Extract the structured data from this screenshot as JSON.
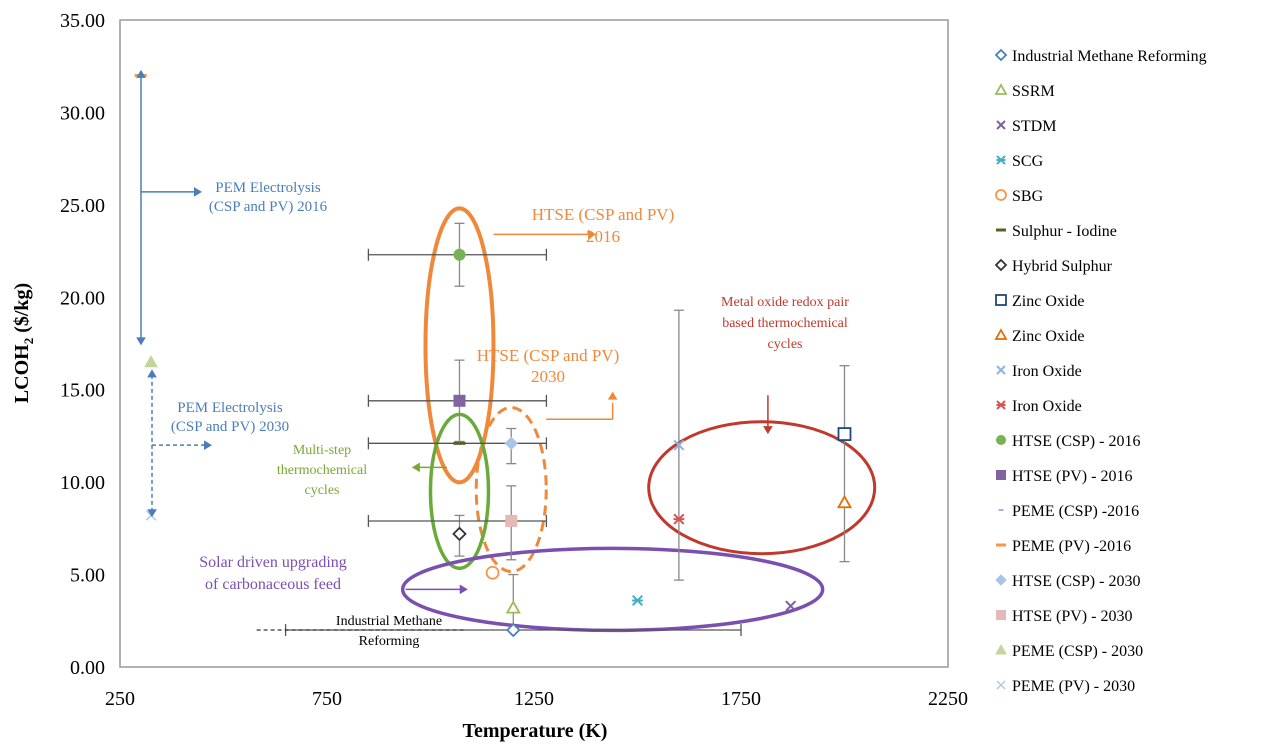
{
  "chart_data": {
    "type": "scatter",
    "xlabel": "Temperature (K)",
    "ylabel_main": "LCOH",
    "ylabel_sub": "2",
    "ylabel_tail": " ($/kg)",
    "xlim": [
      250,
      2250
    ],
    "ylim": [
      0,
      35
    ],
    "xticks": [
      250,
      750,
      1250,
      1750,
      2250
    ],
    "xtick_labels": [
      "250",
      "750",
      "1250",
      "1750",
      "2250"
    ],
    "yticks": [
      0,
      5,
      10,
      15,
      20,
      25,
      30,
      35
    ],
    "ytick_labels": [
      "0.00",
      "5.00",
      "10.00",
      "15.00",
      "20.00",
      "25.00",
      "30.00",
      "35.00"
    ],
    "legend_position": "right",
    "series": [
      {
        "name": "Industrial Methane Reforming",
        "marker": "diamond-open",
        "color": "#4a7ebb",
        "points": [
          {
            "x": 1200,
            "y": 2.0,
            "xerr": [
              650,
              1750
            ]
          }
        ]
      },
      {
        "name": "SSRM",
        "marker": "triangle-open",
        "color": "#9bbb59",
        "points": [
          {
            "x": 1200,
            "y": 3.2,
            "yerr": [
              2.0,
              5.0
            ]
          }
        ]
      },
      {
        "name": "STDM",
        "marker": "x",
        "color": "#7f5f9f",
        "points": [
          {
            "x": 1870,
            "y": 3.3
          }
        ]
      },
      {
        "name": "SCG",
        "marker": "asterisk",
        "color": "#4bacc6",
        "points": [
          {
            "x": 1500,
            "y": 3.6
          }
        ]
      },
      {
        "name": "SBG",
        "marker": "circle-open",
        "color": "#f79646",
        "points": [
          {
            "x": 1150,
            "y": 5.1
          }
        ]
      },
      {
        "name": "Sulphur - Iodine",
        "marker": "dash",
        "color": "#4f6228",
        "points": [
          {
            "x": 1070,
            "y": 12.1,
            "xerr": [
              850,
              1280
            ]
          }
        ]
      },
      {
        "name": "Hybrid Sulphur",
        "marker": "diamond-open",
        "color": "#333333",
        "points": [
          {
            "x": 1070,
            "y": 7.2,
            "yerr": [
              6.0,
              8.2
            ]
          }
        ]
      },
      {
        "name": "Zinc Oxide",
        "marker": "square-open",
        "color": "#1f497d",
        "points": [
          {
            "x": 2000,
            "y": 12.6
          }
        ]
      },
      {
        "name": "Zinc Oxide",
        "marker": "triangle-open",
        "color": "#e36c09",
        "points": [
          {
            "x": 2000,
            "y": 8.9,
            "yerr": [
              5.7,
              16.3
            ]
          }
        ]
      },
      {
        "name": "Iron Oxide",
        "marker": "x",
        "color": "#8eb4e3",
        "points": [
          {
            "x": 1600,
            "y": 12.0,
            "yerr": [
              4.7,
              19.3
            ]
          }
        ]
      },
      {
        "name": "Iron Oxide",
        "marker": "asterisk",
        "color": "#d9534f",
        "points": [
          {
            "x": 1600,
            "y": 8.0
          }
        ]
      },
      {
        "name": "HTSE (CSP) - 2016",
        "marker": "circle-filled",
        "color": "#77b255",
        "points": [
          {
            "x": 1070,
            "y": 22.3,
            "xerr": [
              850,
              1280
            ],
            "yerr": [
              20.6,
              24.0
            ]
          }
        ]
      },
      {
        "name": "HTSE (PV) - 2016",
        "marker": "square-filled",
        "color": "#8064a2",
        "points": [
          {
            "x": 1070,
            "y": 14.4,
            "xerr": [
              850,
              1280
            ],
            "yerr": [
              12.2,
              16.6
            ]
          }
        ]
      },
      {
        "name": "PEME (CSP) -2016",
        "marker": "dash-small",
        "color": "#a0b8d8",
        "points": [
          {
            "x": 300,
            "y": 17.7
          }
        ]
      },
      {
        "name": "PEME (PV) -2016",
        "marker": "dash",
        "color": "#f79646",
        "points": [
          {
            "x": 300,
            "y": 32.0
          }
        ]
      },
      {
        "name": "HTSE (CSP) - 2030",
        "marker": "diamond-filled",
        "color": "#a9c4eb",
        "points": [
          {
            "x": 1195,
            "y": 12.1,
            "yerr": [
              11.0,
              12.9
            ]
          }
        ]
      },
      {
        "name": "HTSE (PV) - 2030",
        "marker": "square-filled",
        "color": "#e6b9b8",
        "points": [
          {
            "x": 1195,
            "y": 7.9,
            "xerr": [
              850,
              1280
            ],
            "yerr": [
              5.8,
              9.8
            ]
          }
        ]
      },
      {
        "name": "PEME (CSP) - 2030",
        "marker": "triangle-filled",
        "color": "#c3d69b",
        "points": [
          {
            "x": 325,
            "y": 16.5
          }
        ]
      },
      {
        "name": "PEME (PV) - 2030",
        "marker": "x-light",
        "color": "#b7c8e0",
        "points": [
          {
            "x": 325,
            "y": 8.2
          }
        ]
      }
    ],
    "annotations": {
      "pem_2016": [
        "PEM Electrolysis",
        "(CSP and PV) 2016"
      ],
      "pem_2030": [
        "PEM Electrolysis",
        "(CSP and PV) 2030"
      ],
      "htse_2016": [
        "HTSE (CSP and PV)",
        "2016"
      ],
      "htse_2030": [
        "HTSE (CSP and PV)",
        "2030"
      ],
      "multistep": [
        "Multi-step",
        "thermochemical",
        "cycles"
      ],
      "metal_oxide": [
        "Metal oxide redox pair",
        "based thermochemical",
        "cycles"
      ],
      "solar_upgrading": [
        "Solar driven upgrading",
        "of carbonaceous feed"
      ],
      "industrial": [
        "Industrial Methane",
        "Reforming"
      ]
    }
  }
}
